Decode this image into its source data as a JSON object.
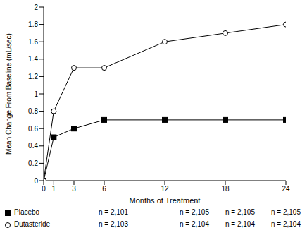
{
  "chart_data": {
    "type": "line",
    "x_label": "Months of Treatment",
    "y_label": "Mean Change From Baseline (mL/sec)",
    "x": [
      0,
      1,
      3,
      6,
      12,
      18,
      24
    ],
    "xlim": [
      0,
      24
    ],
    "xticks": [
      0,
      1,
      3,
      6,
      12,
      18,
      24
    ],
    "ylim": [
      0,
      2
    ],
    "yticks": [
      0,
      0.2,
      0.4,
      0.6,
      0.8,
      1,
      1.2,
      1.4,
      1.6,
      1.8,
      2
    ],
    "grid": false,
    "series": [
      {
        "name": "Placebo",
        "color": "#000000",
        "marker": "filled_square",
        "values": [
          0,
          0.5,
          0.6,
          0.7,
          0.7,
          0.7,
          0.7
        ],
        "n": [
          {
            "value": 2101,
            "label": "n = 2,101"
          },
          {
            "value": 2105,
            "label": "n = 2,105"
          },
          {
            "value": 2105,
            "label": "n = 2,105"
          },
          {
            "value": 2105,
            "label": "n = 2,105"
          }
        ]
      },
      {
        "name": "Dutasteride",
        "color": "#000000",
        "marker": "open_circle",
        "values": [
          0,
          0.8,
          1.3,
          1.3,
          1.6,
          1.7,
          1.8
        ],
        "n": [
          {
            "value": 2103,
            "label": "n = 2,103"
          },
          {
            "value": 2104,
            "label": "n = 2,104"
          },
          {
            "value": 2104,
            "label": "n = 2,104"
          },
          {
            "value": 2104,
            "label": "n = 2,104"
          }
        ]
      }
    ]
  }
}
